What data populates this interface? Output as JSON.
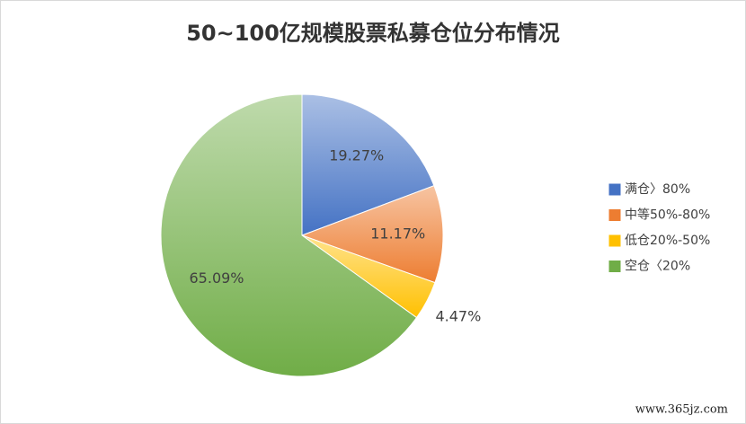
{
  "chart_data": {
    "type": "pie",
    "title": "50~100亿规模股票私募仓位分布情况",
    "categories": [
      "满仓〉80%",
      "中等50%-80%",
      "低仓20%-50%",
      "空仓〈20%"
    ],
    "values": [
      19.27,
      11.17,
      4.47,
      65.09
    ],
    "value_labels": [
      "19.27%",
      "11.17%",
      "4.47%",
      "65.09%"
    ],
    "colors": [
      "#4472c4",
      "#ed7d31",
      "#ffc000",
      "#70ad47"
    ],
    "legend": "right",
    "watermark": "www.365jz.com"
  }
}
